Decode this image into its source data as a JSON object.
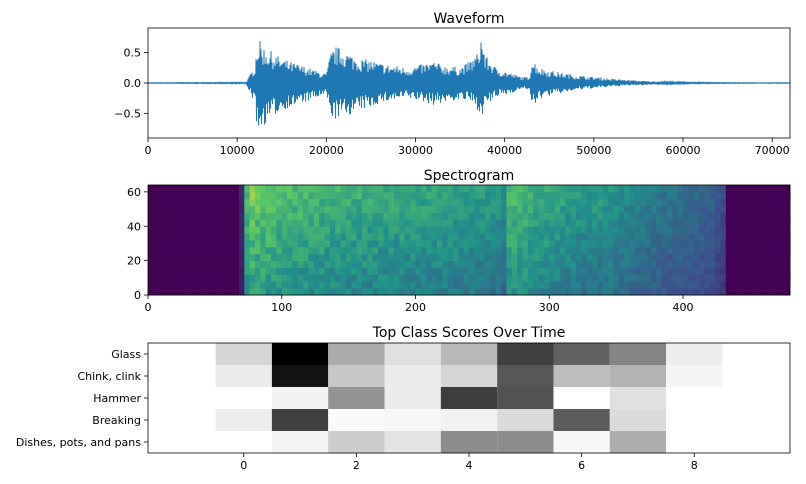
{
  "chart_data": [
    {
      "type": "line",
      "title": "Waveform",
      "xlabel": "",
      "ylabel": "",
      "xlim": [
        0,
        72000
      ],
      "ylim": [
        -0.9,
        0.9
      ],
      "x_ticks": [
        0,
        10000,
        20000,
        30000,
        40000,
        50000,
        60000,
        70000
      ],
      "y_ticks": [
        0.5,
        0.0,
        -0.5
      ],
      "x_tick_labels": [
        "0",
        "10000",
        "20000",
        "30000",
        "40000",
        "50000",
        "60000",
        "70000"
      ],
      "y_tick_labels": [
        "0.5",
        "0.0",
        "−0.5"
      ],
      "envelope": {
        "x": [
          0,
          11000,
          12000,
          12200,
          12400,
          13000,
          14000,
          15000,
          16000,
          17000,
          18000,
          19000,
          20000,
          20500,
          21000,
          22000,
          23000,
          24000,
          25000,
          26000,
          27000,
          28000,
          29000,
          30000,
          31000,
          32000,
          33000,
          34000,
          35000,
          36000,
          37000,
          37400,
          37800,
          38500,
          39000,
          40000,
          41000,
          42000,
          42800,
          43000,
          43500,
          44000,
          46000,
          48000,
          50000,
          52000,
          54000,
          56000,
          58000,
          60000,
          62000,
          64000,
          66000,
          68000,
          72000
        ],
        "upper": [
          0.005,
          0.01,
          0.3,
          0.65,
          0.72,
          0.6,
          0.5,
          0.4,
          0.35,
          0.3,
          0.25,
          0.2,
          0.15,
          0.5,
          0.6,
          0.55,
          0.45,
          0.4,
          0.38,
          0.33,
          0.3,
          0.28,
          0.25,
          0.28,
          0.32,
          0.36,
          0.3,
          0.28,
          0.26,
          0.35,
          0.5,
          0.84,
          0.45,
          0.35,
          0.25,
          0.2,
          0.15,
          0.1,
          0.1,
          0.4,
          0.33,
          0.25,
          0.18,
          0.13,
          0.1,
          0.07,
          0.05,
          0.03,
          0.02,
          0.015,
          0.01,
          0.008,
          0.006,
          0.005,
          0.005
        ],
        "lower": [
          -0.005,
          -0.01,
          -0.35,
          -0.7,
          -0.85,
          -0.7,
          -0.55,
          -0.45,
          -0.4,
          -0.35,
          -0.3,
          -0.25,
          -0.2,
          -0.55,
          -0.6,
          -0.55,
          -0.5,
          -0.45,
          -0.4,
          -0.33,
          -0.3,
          -0.28,
          -0.25,
          -0.28,
          -0.32,
          -0.36,
          -0.33,
          -0.3,
          -0.28,
          -0.3,
          -0.45,
          -0.55,
          -0.4,
          -0.32,
          -0.24,
          -0.2,
          -0.15,
          -0.1,
          -0.1,
          -0.45,
          -0.35,
          -0.25,
          -0.18,
          -0.12,
          -0.09,
          -0.06,
          -0.04,
          -0.03,
          -0.02,
          -0.012,
          -0.01,
          -0.008,
          -0.006,
          -0.005,
          -0.005
        ]
      },
      "color": "#1f77b4"
    },
    {
      "type": "heatmap",
      "title": "Spectrogram",
      "xlabel": "",
      "ylabel": "",
      "xlim": [
        0,
        480
      ],
      "ylim": [
        0,
        64
      ],
      "x_ticks": [
        0,
        100,
        200,
        300,
        400
      ],
      "y_ticks": [
        0,
        20,
        40,
        60
      ],
      "x_tick_labels": [
        "0",
        "100",
        "200",
        "300",
        "400"
      ],
      "y_tick_labels": [
        "0",
        "20",
        "40",
        "60"
      ],
      "colormap": "viridis",
      "frames": 480,
      "bins": 64,
      "active_range": [
        72,
        432
      ],
      "frame_energy": {
        "x": [
          0,
          68,
          70,
          72,
          74,
          76,
          85,
          100,
          120,
          140,
          160,
          180,
          200,
          220,
          240,
          255,
          262,
          266,
          270,
          290,
          310,
          330,
          335,
          340,
          360,
          380,
          400,
          420,
          430,
          434,
          480
        ],
        "v": [
          0.0,
          0.0,
          0.15,
          0.35,
          0.9,
          1.0,
          0.95,
          0.9,
          0.85,
          0.82,
          0.8,
          0.78,
          0.76,
          0.74,
          0.72,
          0.7,
          0.68,
          0.6,
          0.88,
          0.8,
          0.74,
          0.66,
          0.72,
          0.68,
          0.6,
          0.52,
          0.46,
          0.42,
          0.3,
          0.0,
          0.0
        ]
      }
    },
    {
      "type": "heatmap",
      "title": "Top Class Scores Over Time",
      "xlabel": "",
      "ylabel": "",
      "xlim": [
        -1.7,
        9.7
      ],
      "x_ticks": [
        0,
        2,
        4,
        6,
        8
      ],
      "x_tick_labels": [
        "0",
        "2",
        "4",
        "6",
        "8"
      ],
      "colormap": "gray_r",
      "rows": [
        "Glass",
        "Chink, clink",
        "Hammer",
        "Breaking",
        "Dishes, pots, and pans"
      ],
      "columns": [
        -1,
        0,
        1,
        2,
        3,
        4,
        5,
        6,
        7,
        8,
        9
      ],
      "values": [
        [
          0.0,
          0.16,
          1.0,
          0.33,
          0.12,
          0.28,
          0.75,
          0.62,
          0.48,
          0.07,
          0.0
        ],
        [
          0.0,
          0.08,
          0.93,
          0.22,
          0.08,
          0.16,
          0.66,
          0.26,
          0.3,
          0.04,
          0.0
        ],
        [
          0.0,
          0.0,
          0.05,
          0.42,
          0.08,
          0.76,
          0.68,
          0.0,
          0.12,
          0.0,
          0.0
        ],
        [
          0.0,
          0.07,
          0.75,
          0.02,
          0.03,
          0.05,
          0.14,
          0.64,
          0.14,
          0.0,
          0.0
        ],
        [
          0.0,
          0.0,
          0.04,
          0.2,
          0.11,
          0.45,
          0.45,
          0.03,
          0.32,
          0.0,
          0.0
        ]
      ]
    }
  ]
}
